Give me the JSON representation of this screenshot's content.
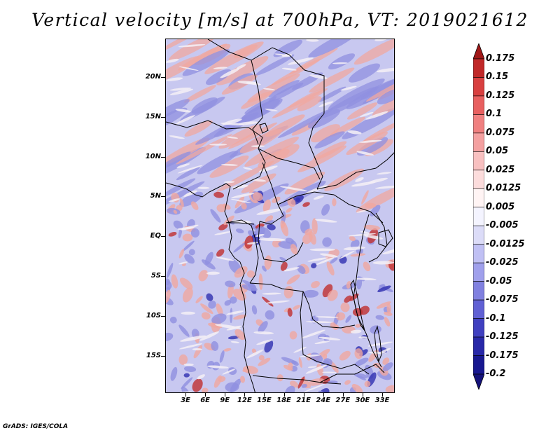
{
  "title": "Vertical velocity [m/s] at 700hPa, VT: 2019021612",
  "credit": "GrADS: IGES/COLA",
  "map": {
    "lat_labels": [
      "20N",
      "15N",
      "10N",
      "5N",
      "EQ",
      "5S",
      "10S",
      "15S"
    ],
    "lon_labels": [
      "3E",
      "6E",
      "9E",
      "12E",
      "15E",
      "18E",
      "21E",
      "24E",
      "27E",
      "30E",
      "33E"
    ],
    "field_colors": {
      "background": "#c8c8f0",
      "positive": "#f0a8a0",
      "strong_positive": "#c03030",
      "negative": "#9090e0",
      "strong_negative": "#3030b0",
      "near_zero": "#f4f0f6",
      "boundaries": "#000000"
    }
  },
  "colorbar": {
    "labels": [
      "0.175",
      "0.15",
      "0.125",
      "0.1",
      "0.075",
      "0.05",
      "0.025",
      "0.0125",
      "0.005",
      "-0.005",
      "-0.0125",
      "-0.025",
      "-0.05",
      "-0.075",
      "-0.1",
      "-0.125",
      "-0.175",
      "-0.2"
    ],
    "colors": [
      "#a01818",
      "#c02828",
      "#d84040",
      "#e86060",
      "#f08080",
      "#f4a0a0",
      "#f8c0c0",
      "#fcdcdc",
      "#fff4f4",
      "#f4f4ff",
      "#dcdcf8",
      "#c0c0f4",
      "#a0a0ec",
      "#8080e0",
      "#6060d4",
      "#4040c0",
      "#2828a8",
      "#181890",
      "#14127a"
    ]
  }
}
